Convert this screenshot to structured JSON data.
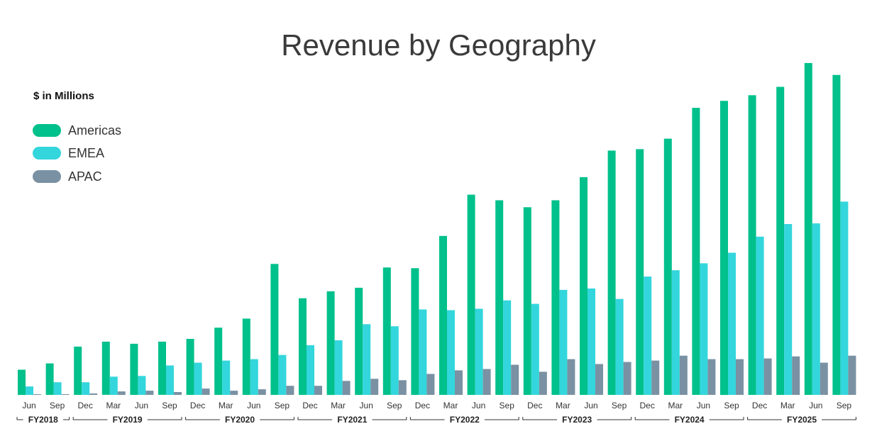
{
  "chart_data": {
    "type": "bar",
    "title": "Revenue by Geography",
    "ylabel": "$ in Millions",
    "xlabel": "",
    "grid": false,
    "legend_position": "top-left",
    "categories": [
      "Jun",
      "Sep",
      "Dec",
      "Mar",
      "Jun",
      "Sep",
      "Dec",
      "Mar",
      "Jun",
      "Sep",
      "Dec",
      "Mar",
      "Jun",
      "Sep",
      "Dec",
      "Mar",
      "Jun",
      "Sep",
      "Dec",
      "Mar",
      "Jun",
      "Sep",
      "Dec",
      "Mar",
      "Jun",
      "Sep",
      "Dec",
      "Mar",
      "Jun",
      "Sep"
    ],
    "fiscal_years": [
      {
        "label": "FY2018",
        "start": 0,
        "end": 1
      },
      {
        "label": "FY2019",
        "start": 2,
        "end": 5
      },
      {
        "label": "FY2020",
        "start": 6,
        "end": 9
      },
      {
        "label": "FY2021",
        "start": 10,
        "end": 13
      },
      {
        "label": "FY2022",
        "start": 14,
        "end": 17
      },
      {
        "label": "FY2023",
        "start": 18,
        "end": 21
      },
      {
        "label": "FY2024",
        "start": 22,
        "end": 25
      },
      {
        "label": "FY2025",
        "start": 26,
        "end": 29
      }
    ],
    "series": [
      {
        "name": "Americas",
        "color": "#00c08b",
        "values": [
          36,
          45,
          69,
          76,
          73,
          76,
          80,
          96,
          109,
          187,
          138,
          148,
          153,
          182,
          181,
          227,
          286,
          278,
          268,
          278,
          311,
          349,
          351,
          366,
          410,
          420,
          428,
          440,
          474,
          457
        ]
      },
      {
        "name": "EMEA",
        "color": "#33d6dc",
        "values": [
          12,
          18,
          18,
          26,
          27,
          42,
          46,
          49,
          51,
          57,
          71,
          78,
          101,
          98,
          122,
          121,
          123,
          135,
          130,
          150,
          152,
          137,
          169,
          178,
          188,
          203,
          226,
          244,
          245,
          276
        ]
      },
      {
        "name": "APAC",
        "color": "#7a91a3",
        "values": [
          1,
          1,
          2,
          5,
          6,
          4,
          9,
          6,
          8,
          13,
          13,
          20,
          23,
          21,
          30,
          35,
          37,
          43,
          33,
          51,
          44,
          47,
          49,
          56,
          51,
          51,
          52,
          55,
          46,
          56
        ]
      }
    ],
    "ylim": [
      0,
      480
    ]
  }
}
